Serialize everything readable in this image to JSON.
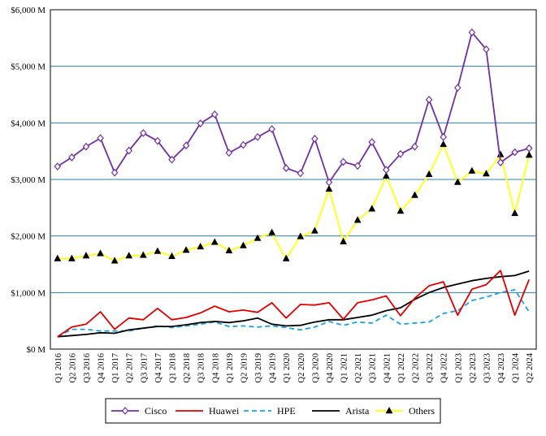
{
  "chart_data": {
    "type": "line",
    "title": "",
    "xlabel": "",
    "ylabel": "",
    "ylim": [
      0,
      6000
    ],
    "y_ticks": [
      "$0 M",
      "$1,000 M",
      "$2,000 M",
      "$3,000 M",
      "$4,000 M",
      "$5,000 M",
      "$6,000 M"
    ],
    "y_tick_values": [
      0,
      1000,
      2000,
      3000,
      4000,
      5000,
      6000
    ],
    "grid": "horizontal",
    "legend_position": "bottom",
    "categories": [
      "Q1 2016",
      "Q2 2016",
      "Q3 2016",
      "Q4 2016",
      "Q1 2017",
      "Q2 2017",
      "Q3 2017",
      "Q4 2017",
      "Q1 2018",
      "Q2 2018",
      "Q3 2018",
      "Q4 2018",
      "Q1 2019",
      "Q2 2019",
      "Q3 2019",
      "Q4 2019",
      "Q1 2020",
      "Q2 2020",
      "Q3 2020",
      "Q4 2020",
      "Q1 2021",
      "Q2 2021",
      "Q3 2021",
      "Q4 2021",
      "Q1 2022",
      "Q2 2022",
      "Q3 2022",
      "Q4 2022",
      "Q1 2023",
      "Q2 2023",
      "Q3 2023",
      "Q4 2023",
      "Q1 2024",
      "Q2 2024"
    ],
    "series": [
      {
        "name": "Cisco",
        "color": "#7030a0",
        "style": "solid",
        "marker": "diamond",
        "values": [
          3230,
          3390,
          3580,
          3730,
          3120,
          3510,
          3820,
          3680,
          3350,
          3600,
          3990,
          4150,
          3470,
          3610,
          3750,
          3890,
          3200,
          3110,
          3720,
          2950,
          3310,
          3240,
          3660,
          3170,
          3450,
          3580,
          4410,
          3750,
          4620,
          5600,
          5300,
          3300,
          3480,
          3550
        ]
      },
      {
        "name": "Huawei",
        "color": "#e00000",
        "style": "solid",
        "marker": "none",
        "values": [
          220,
          390,
          440,
          660,
          350,
          550,
          520,
          720,
          520,
          560,
          640,
          760,
          660,
          690,
          650,
          820,
          550,
          790,
          780,
          820,
          530,
          820,
          870,
          940,
          590,
          900,
          1120,
          1190,
          600,
          1060,
          1140,
          1390,
          600,
          1230
        ]
      },
      {
        "name": "HPE",
        "color": "#1ba1e2",
        "style": "dashed",
        "marker": "none",
        "values": [
          220,
          350,
          350,
          320,
          320,
          320,
          370,
          410,
          380,
          410,
          440,
          480,
          400,
          410,
          390,
          410,
          380,
          340,
          390,
          490,
          420,
          480,
          460,
          600,
          440,
          460,
          480,
          630,
          680,
          860,
          920,
          1000,
          1050,
          660
        ]
      },
      {
        "name": "Arista",
        "color": "#000000",
        "style": "solid",
        "marker": "none",
        "values": [
          220,
          240,
          260,
          290,
          280,
          340,
          370,
          400,
          400,
          430,
          470,
          490,
          470,
          500,
          550,
          440,
          410,
          420,
          480,
          520,
          520,
          560,
          600,
          680,
          730,
          880,
          1000,
          1090,
          1150,
          1210,
          1250,
          1280,
          1300,
          1380
        ]
      },
      {
        "name": "Others",
        "color": "#ffff33",
        "style": "solid",
        "marker": "triangle",
        "values": [
          1600,
          1600,
          1650,
          1690,
          1560,
          1650,
          1660,
          1730,
          1640,
          1750,
          1810,
          1890,
          1740,
          1830,
          1960,
          2060,
          1600,
          1990,
          2090,
          2830,
          1900,
          2280,
          2480,
          3060,
          2440,
          2720,
          3090,
          3620,
          2950,
          3150,
          3100,
          3440,
          2400,
          3430
        ]
      }
    ]
  }
}
